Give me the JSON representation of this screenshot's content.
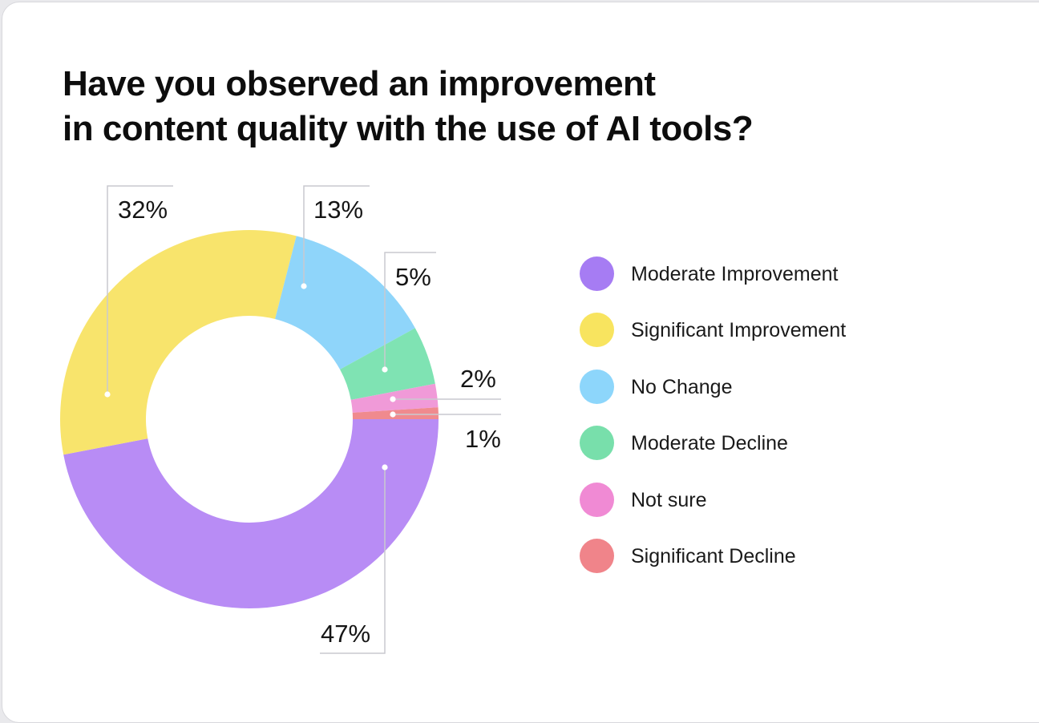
{
  "chart_data": {
    "type": "pie",
    "variant": "donut",
    "title": "Have you observed an improvement in content quality with the use of AI tools?",
    "slices": [
      {
        "label": "Moderate Improvement",
        "value": 47,
        "display": "47%",
        "color": "#b88cf5"
      },
      {
        "label": "Significant Improvement",
        "value": 32,
        "display": "32%",
        "color": "#f8e46c"
      },
      {
        "label": "No Change",
        "value": 13,
        "display": "13%",
        "color": "#8fd5fa"
      },
      {
        "label": "Moderate Decline",
        "value": 5,
        "display": "5%",
        "color": "#7fe3b3"
      },
      {
        "label": "Not sure",
        "value": 2,
        "display": "2%",
        "color": "#f09ad8"
      },
      {
        "label": "Significant Decline",
        "value": 1,
        "display": "1%",
        "color": "#f08a8e"
      }
    ],
    "legend_position": "right"
  },
  "legend": {
    "items": [
      {
        "label": "Moderate Improvement",
        "color": "#a67cf3"
      },
      {
        "label": "Significant Improvement",
        "color": "#f8e45f"
      },
      {
        "label": "No Change",
        "color": "#8dd6fb"
      },
      {
        "label": "Moderate Decline",
        "color": "#78dfab"
      },
      {
        "label": "Not sure",
        "color": "#f08ad4"
      },
      {
        "label": "Significant Decline",
        "color": "#f0848a"
      }
    ]
  }
}
